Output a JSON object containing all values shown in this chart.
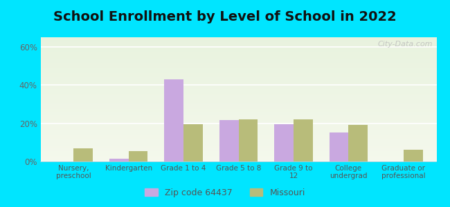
{
  "title": "School Enrollment by Level of School in 2022",
  "categories": [
    "Nursery,\npreschool",
    "Kindergarten",
    "Grade 1 to 4",
    "Grade 5 to 8",
    "Grade 9 to\n12",
    "College\nundergrad",
    "Graduate or\nprofessional"
  ],
  "zip_values": [
    0.0,
    1.5,
    43.0,
    21.5,
    19.5,
    15.0,
    0.0
  ],
  "mo_values": [
    7.0,
    5.5,
    19.5,
    22.0,
    22.0,
    19.0,
    6.0
  ],
  "zip_color": "#c9a8e0",
  "mo_color": "#b8bc7a",
  "background_color": "#00e5ff",
  "ylim": [
    0,
    65
  ],
  "yticks": [
    0,
    20,
    40,
    60
  ],
  "ytick_labels": [
    "0%",
    "20%",
    "40%",
    "60%"
  ],
  "title_fontsize": 14,
  "legend_zip_label": "Zip code 64437",
  "legend_mo_label": "Missouri",
  "bar_width": 0.35,
  "watermark": "City-Data.com"
}
